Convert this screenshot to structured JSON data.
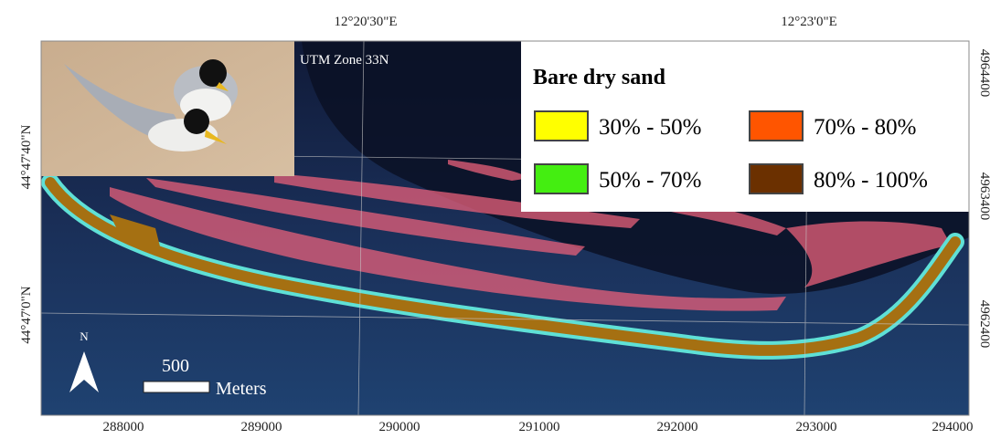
{
  "projection": "UTM Zone 33N",
  "graticule": {
    "top": [
      "12°20'30\"E",
      "12°23'0\"E"
    ],
    "left": [
      "44°47'40\"N",
      "44°47'0\"N"
    ]
  },
  "utm": {
    "bottom": [
      "288000",
      "289000",
      "290000",
      "291000",
      "292000",
      "293000",
      "294000"
    ],
    "right": [
      "4964400",
      "4963400",
      "4962400"
    ]
  },
  "legend": {
    "title": "Bare dry sand",
    "items": [
      {
        "label": "30% - 50%",
        "color": "#ffff00"
      },
      {
        "label": "70% - 80%",
        "color": "#ff5500"
      },
      {
        "label": "50% - 70%",
        "color": "#44ee11"
      },
      {
        "label": "80% - 100%",
        "color": "#6b3000"
      }
    ]
  },
  "scale_bar": {
    "distance": "500",
    "unit": "Meters"
  },
  "north": "N"
}
